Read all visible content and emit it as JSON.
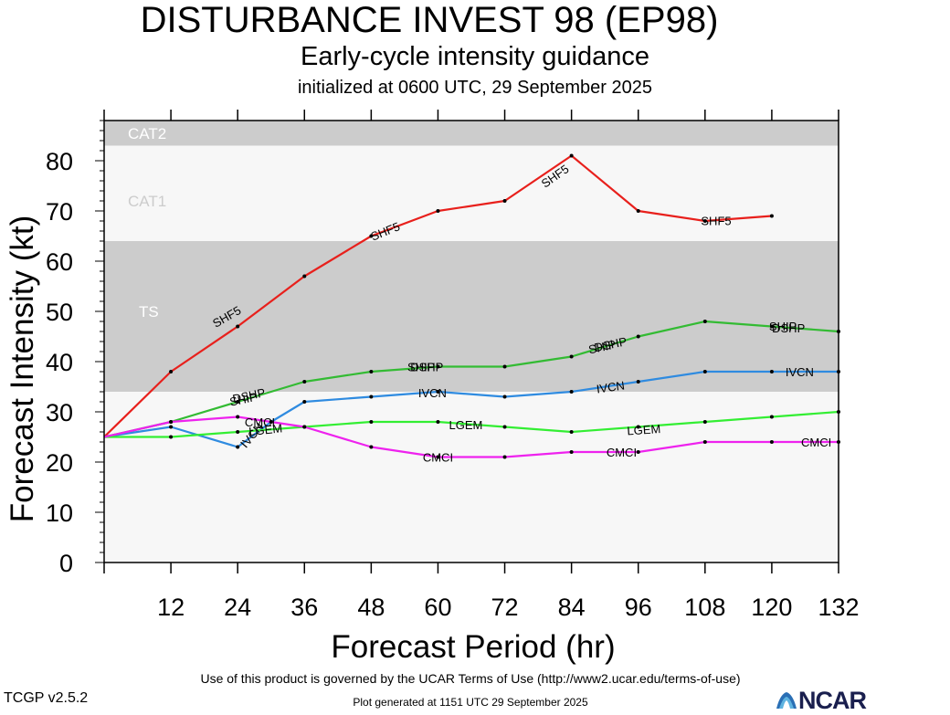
{
  "header": {
    "title": "DISTURBANCE INVEST 98 (EP98)",
    "subtitle": "Early-cycle intensity guidance",
    "init": "initialized at 0600 UTC, 29 September 2025"
  },
  "footer": {
    "terms": "Use of this product is governed by the UCAR Terms of Use (http://www2.ucar.edu/terms-of-use)",
    "generated": "Plot generated at 1151 UTC   29 September 2025",
    "version": "TCGP v2.5.2",
    "logo": "NCAR"
  },
  "chart_data": {
    "type": "line",
    "xlabel": "Forecast Period (hr)",
    "ylabel": "Forecast Intensity (kt)",
    "xlim": [
      0,
      132
    ],
    "ylim": [
      0,
      88
    ],
    "xticks": [
      12,
      24,
      36,
      48,
      60,
      72,
      84,
      96,
      108,
      120,
      132
    ],
    "yticks": [
      0,
      10,
      20,
      30,
      40,
      50,
      60,
      70,
      80
    ],
    "bands": [
      {
        "name": "TS",
        "from": 34,
        "to": 64,
        "color": "#cccccc"
      },
      {
        "name": "CAT1",
        "from": 64,
        "to": 83,
        "color": "#f7f7f7"
      },
      {
        "name": "CAT2",
        "from": 83,
        "to": 88,
        "color": "#cccccc"
      }
    ],
    "below_band_color": "#f7f7f7",
    "series": [
      {
        "name": "SHF5",
        "color": "#e8201c",
        "x": [
          0,
          12,
          24,
          36,
          48,
          60,
          72,
          84,
          96,
          108,
          120
        ],
        "values": [
          25,
          38,
          47,
          57,
          65,
          70,
          72,
          81,
          70,
          68,
          69
        ],
        "labels": [
          {
            "text": "SHF5",
            "x": 22,
            "y": 49,
            "angle": -30
          },
          {
            "text": "SHF5",
            "x": 50.5,
            "y": 66,
            "angle": -22
          },
          {
            "text": "SHF5",
            "x": 81,
            "y": 77,
            "angle": -35
          },
          {
            "text": "SHF5",
            "x": 110,
            "y": 68.1,
            "angle": 0
          }
        ]
      },
      {
        "name": "DSHP",
        "color": "#33bb33",
        "x": [
          0,
          12,
          24,
          36,
          48,
          60,
          72,
          84,
          96,
          108,
          120,
          132
        ],
        "values": [
          25,
          28,
          32,
          36,
          38,
          39,
          39,
          41,
          45,
          48,
          47,
          46
        ],
        "labels": [
          {
            "text": "DSHP",
            "x": 26,
            "y": 33.3,
            "angle": -12
          },
          {
            "text": "DSHP",
            "x": 58,
            "y": 39,
            "angle": 0
          },
          {
            "text": "DSHP",
            "x": 91,
            "y": 43.5,
            "angle": -12
          },
          {
            "text": "DSHP",
            "x": 123,
            "y": 46.7,
            "angle": 0
          }
        ]
      },
      {
        "name": "SHIP",
        "color": "#33bb33",
        "x": [],
        "values": [],
        "labels": [
          {
            "text": "SHIP",
            "x": 25,
            "y": 32.6,
            "angle": -12
          },
          {
            "text": "SHIP",
            "x": 57,
            "y": 39,
            "angle": 0
          },
          {
            "text": "SHIP",
            "x": 89.5,
            "y": 43,
            "angle": -12
          },
          {
            "text": "SHIP",
            "x": 122,
            "y": 47.1,
            "angle": 0
          }
        ]
      },
      {
        "name": "IVCN",
        "color": "#2f8be0",
        "x": [
          0,
          12,
          24,
          30,
          36,
          48,
          60,
          72,
          84,
          96,
          108,
          120,
          132
        ],
        "values": [
          25,
          27,
          23,
          28,
          32,
          33,
          34,
          33,
          34,
          36,
          38,
          38,
          38
        ],
        "labels": [
          {
            "text": "IVCN",
            "x": 26.5,
            "y": 25.4,
            "angle": -50
          },
          {
            "text": "IVCN",
            "x": 59,
            "y": 33.8,
            "angle": 0
          },
          {
            "text": "IVCN",
            "x": 91,
            "y": 35,
            "angle": -8
          },
          {
            "text": "IVCN",
            "x": 125,
            "y": 38,
            "angle": 0
          }
        ]
      },
      {
        "name": "LGEM",
        "color": "#33ee33",
        "x": [
          0,
          12,
          24,
          36,
          48,
          60,
          72,
          84,
          96,
          108,
          120,
          132
        ],
        "values": [
          25,
          25,
          26,
          27,
          28,
          28,
          27,
          26,
          27,
          28,
          29,
          30
        ],
        "labels": [
          {
            "text": "LGEM",
            "x": 29,
            "y": 26.5,
            "angle": -6
          },
          {
            "text": "LGEM",
            "x": 65,
            "y": 27.5,
            "angle": 0
          },
          {
            "text": "LGEM",
            "x": 97,
            "y": 26.5,
            "angle": -4
          }
        ]
      },
      {
        "name": "CMCI",
        "color": "#ee22ee",
        "x": [
          0,
          12,
          24,
          36,
          48,
          60,
          72,
          84,
          96,
          108,
          120,
          132
        ],
        "values": [
          25,
          28,
          29,
          27,
          23,
          21,
          21,
          22,
          22,
          24,
          24,
          24
        ],
        "labels": [
          {
            "text": "CMCI",
            "x": 28,
            "y": 28,
            "angle": 0
          },
          {
            "text": "CMCI",
            "x": 60,
            "y": 21,
            "angle": 0
          },
          {
            "text": "CMCI",
            "x": 93,
            "y": 22,
            "angle": 0
          },
          {
            "text": "CMCI",
            "x": 128,
            "y": 24,
            "angle": 0
          }
        ]
      }
    ]
  }
}
